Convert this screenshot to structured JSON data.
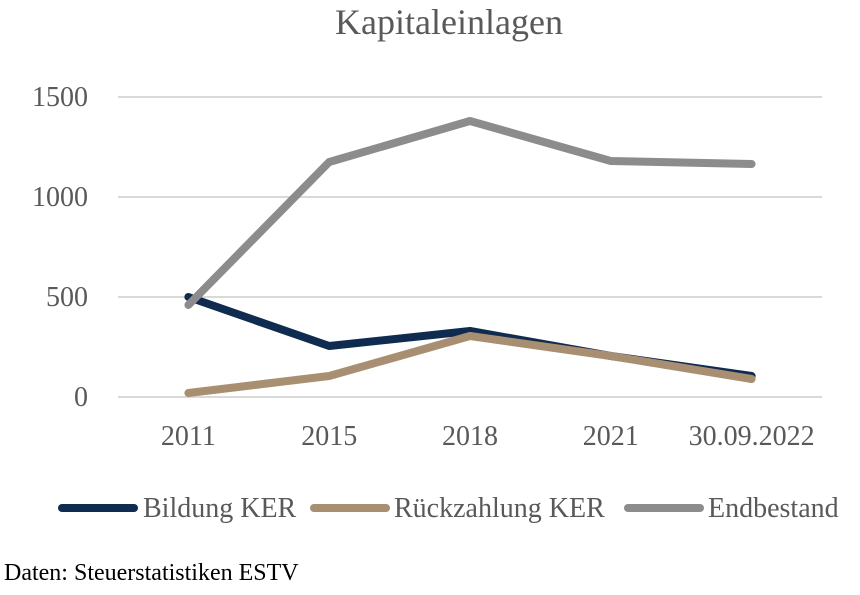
{
  "chart_data": {
    "type": "line",
    "title": "Kapitaleinlagen",
    "categories": [
      "2011",
      "2015",
      "2018",
      "2021",
      "30.09.2022"
    ],
    "ylim": [
      0,
      1500
    ],
    "yticks": [
      0,
      500,
      1000,
      1500
    ],
    "grid": true,
    "legend_position": "bottom",
    "series": [
      {
        "name": "Bildung KER",
        "color": "#0f2b50",
        "values": [
          500,
          255,
          330,
          205,
          105
        ]
      },
      {
        "name": "Rückzahlung KER",
        "color": "#a88f72",
        "values": [
          20,
          105,
          305,
          205,
          90
        ]
      },
      {
        "name": "Endbestand",
        "color": "#8c8c8c",
        "values": [
          460,
          1175,
          1380,
          1180,
          1165
        ]
      }
    ]
  },
  "source": "Daten: Steuerstatistiken ESTV"
}
